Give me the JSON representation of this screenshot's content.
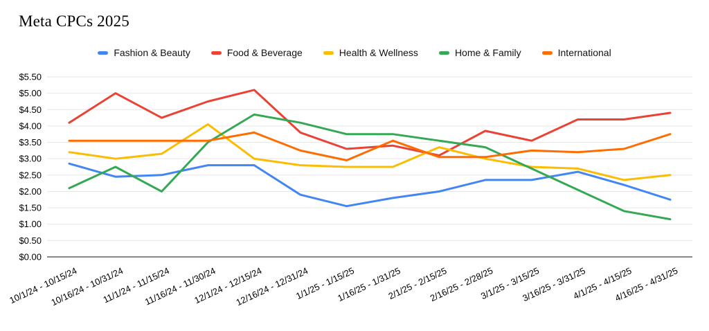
{
  "title": "Meta CPCs 2025",
  "colors": {
    "background": "#ffffff",
    "grid": "#e6e6e6",
    "baseline": "#424242",
    "text": "#000000"
  },
  "chart_data": {
    "type": "line",
    "title": "Meta CPCs 2025",
    "legend_position": "top",
    "grid": true,
    "ylim": [
      0,
      5.5
    ],
    "ytick_step": 0.5,
    "ytick_labels": [
      "$0.00",
      "$0.50",
      "$1.00",
      "$1.50",
      "$2.00",
      "$2.50",
      "$3.00",
      "$3.50",
      "$4.00",
      "$4.50",
      "$5.00",
      "$5.50"
    ],
    "x_label_rotation_deg": -25,
    "categories": [
      "10/1/24 - 10/15/24",
      "10/16/24 - 10/31/24",
      "11/1/24 - 11/15/24",
      "11/16/24 - 11/30/24",
      "12/1/24 - 12/15/24",
      "12/16/24 - 12/31/24",
      "1/1/25 - 1/15/25",
      "1/16/25 - 1/31/25",
      "2/1/25 - 2/15/25",
      "2/16/25 - 2/28/25",
      "3/1/25 - 3/15/25",
      "3/16/25 - 3/31/25",
      "4/1/25 - 4/15/25",
      "4/16/25 - 4/31/25"
    ],
    "series": [
      {
        "name": "Fashion & Beauty",
        "color": "#4285F4",
        "values": [
          2.85,
          2.45,
          2.5,
          2.8,
          2.8,
          1.9,
          1.55,
          1.8,
          2.0,
          2.35,
          2.35,
          2.6,
          2.2,
          1.75
        ]
      },
      {
        "name": "Food & Beverage",
        "color": "#EA4335",
        "values": [
          4.1,
          5.0,
          4.25,
          4.75,
          5.1,
          3.8,
          3.3,
          3.4,
          3.1,
          3.85,
          3.55,
          4.2,
          4.2,
          4.4
        ]
      },
      {
        "name": "Health & Wellness",
        "color": "#FBBC04",
        "values": [
          3.2,
          3.0,
          3.15,
          4.05,
          3.0,
          2.8,
          2.75,
          2.75,
          3.35,
          3.0,
          2.75,
          2.7,
          2.35,
          2.5
        ]
      },
      {
        "name": "Home & Family",
        "color": "#34A853",
        "values": [
          2.1,
          2.75,
          2.0,
          3.5,
          4.35,
          4.1,
          3.75,
          3.75,
          3.55,
          3.35,
          2.7,
          2.05,
          1.4,
          1.15
        ]
      },
      {
        "name": "International",
        "color": "#FF6D01",
        "values": [
          3.55,
          3.55,
          3.55,
          3.55,
          3.8,
          3.25,
          2.95,
          3.55,
          3.05,
          3.05,
          3.25,
          3.2,
          3.3,
          3.75
        ]
      }
    ]
  }
}
